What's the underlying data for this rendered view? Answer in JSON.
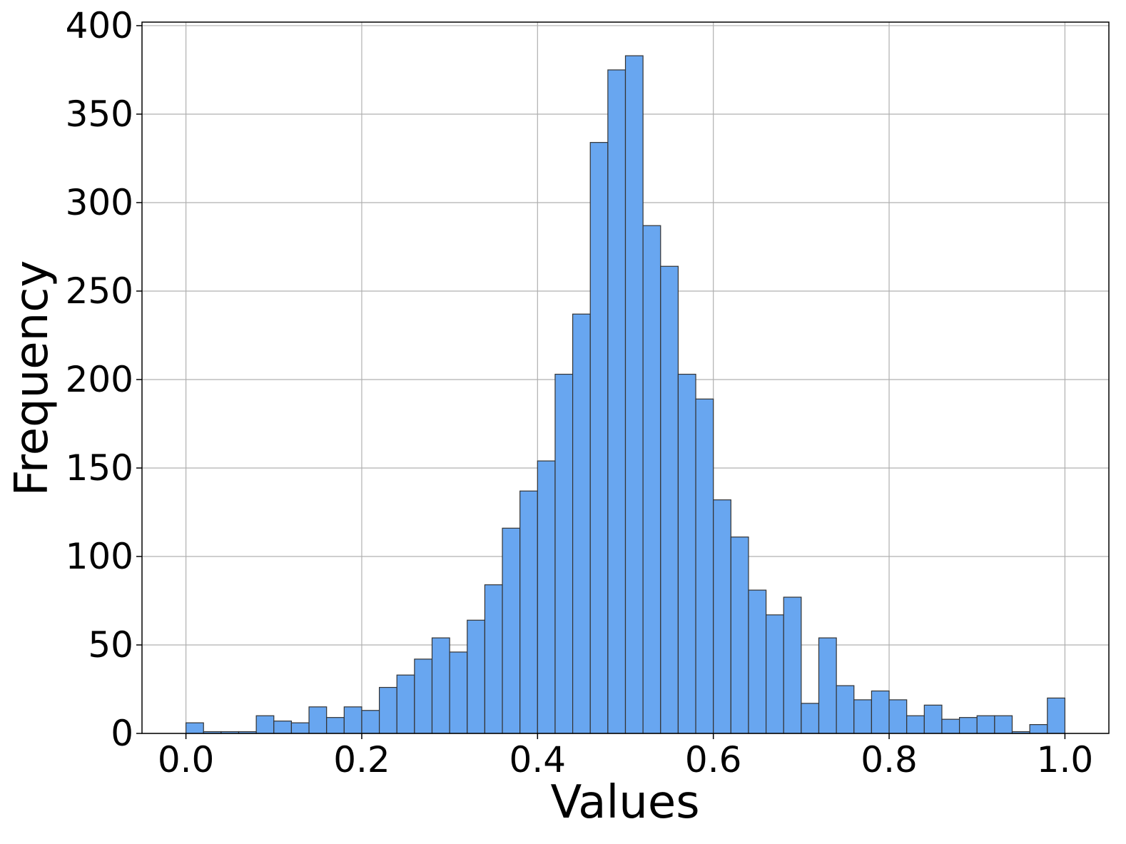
{
  "chart_data": {
    "type": "bar",
    "subtype": "histogram",
    "title": "",
    "xlabel": "Values",
    "ylabel": "Frequency",
    "xlim": [
      -0.05,
      1.05
    ],
    "ylim": [
      0,
      402
    ],
    "xticks": [
      "0.0",
      "0.2",
      "0.4",
      "0.6",
      "0.8",
      "1.0"
    ],
    "xtick_values": [
      0.0,
      0.2,
      0.4,
      0.6,
      0.8,
      1.0
    ],
    "yticks": [
      "0",
      "50",
      "100",
      "150",
      "200",
      "250",
      "300",
      "350",
      "400"
    ],
    "ytick_values": [
      0,
      50,
      100,
      150,
      200,
      250,
      300,
      350,
      400
    ],
    "grid": true,
    "bin_start": 0.0,
    "bin_width": 0.02,
    "values": [
      6,
      1,
      1,
      1,
      10,
      7,
      6,
      15,
      9,
      15,
      13,
      26,
      33,
      42,
      54,
      46,
      64,
      84,
      116,
      137,
      154,
      203,
      237,
      334,
      375,
      383,
      287,
      264,
      203,
      189,
      132,
      111,
      81,
      67,
      77,
      17,
      54,
      27,
      19,
      24,
      19,
      10,
      16,
      8,
      9,
      10,
      10,
      1,
      5,
      20
    ],
    "colors": {
      "bar_fill": "#68a6f0",
      "bar_edge": "#333333"
    }
  }
}
